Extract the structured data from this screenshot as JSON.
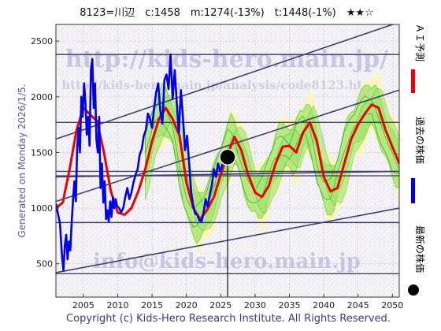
{
  "header": {
    "title": "8123=川辺　c:1458　m:1274(-13%)　t:1448(-1%)　★★☆"
  },
  "side_label": "Generated on Monday 2026/1/5.",
  "footer": {
    "copyright": "Copyright (c) Kids-Hero Research Institute. All Rights Reserved."
  },
  "watermarks": {
    "url": "http://kids-hero.main.jp/",
    "path": "http://kids-hero.main.jp/analysis/code8123.html",
    "email": "info@kids-hero.main.jp"
  },
  "legend": {
    "ai": "ＡＩ予測",
    "past": "過去の株価",
    "latest": "最新の株価"
  },
  "colors": {
    "price": "#0000ee",
    "ai": "#ee0000",
    "band_fill": "#9be36a",
    "band_line": "#3fb52a",
    "channel": "#404070",
    "latest_marker": "#000000"
  },
  "chart_data": {
    "type": "line",
    "xlim": [
      2001,
      2051
    ],
    "ylim": [
      200,
      2650
    ],
    "x_ticks": [
      2005,
      2010,
      2015,
      2020,
      2025,
      2030,
      2035,
      2040,
      2045,
      2050
    ],
    "x_tick_labels": [
      "2005",
      "2010",
      "2015",
      "2020",
      "2025",
      "2030",
      "2035",
      "2040",
      "2045",
      "2050"
    ],
    "y_ticks": [
      500,
      1000,
      1500,
      2000,
      2500
    ],
    "y_tick_labels": [
      "500",
      "1000",
      "1500",
      "2000",
      "2500"
    ],
    "grid": true,
    "latest": {
      "x": 2026.0,
      "y": 1458
    },
    "current_year_line": 2026.0,
    "horizontal_levels": [
      2380,
      1770,
      1330,
      1290,
      870,
      410
    ],
    "trend_lines": [
      {
        "x": [
          2001,
          2051
        ],
        "y": [
          1620,
          2670
        ]
      },
      {
        "x": [
          2001,
          2051
        ],
        "y": [
          1060,
          2060
        ]
      },
      {
        "x": [
          2001,
          2051
        ],
        "y": [
          420,
          1000
        ]
      },
      {
        "x": [
          2001,
          2051
        ],
        "y": [
          1280,
          1330
        ]
      }
    ],
    "series": [
      {
        "name": "過去の株価",
        "x": [
          2001.0,
          2001.3,
          2001.6,
          2001.9,
          2002.1,
          2002.3,
          2002.5,
          2002.7,
          2002.9,
          2003.1,
          2003.3,
          2003.5,
          2003.7,
          2003.9,
          2004.1,
          2004.3,
          2004.5,
          2004.7,
          2004.9,
          2005.1,
          2005.3,
          2005.5,
          2005.7,
          2005.9,
          2006.1,
          2006.3,
          2006.5,
          2006.7,
          2006.9,
          2007.1,
          2007.3,
          2007.5,
          2007.7,
          2007.9,
          2008.1,
          2008.3,
          2008.5,
          2008.7,
          2008.9,
          2009.1,
          2009.3,
          2009.5,
          2009.7,
          2009.9,
          2010.2,
          2010.5,
          2010.8,
          2011.1,
          2011.4,
          2011.7,
          2012.0,
          2012.3,
          2012.6,
          2012.9,
          2013.2,
          2013.5,
          2013.8,
          2014.1,
          2014.4,
          2014.7,
          2015.0,
          2015.3,
          2015.6,
          2015.9,
          2016.2,
          2016.5,
          2016.8,
          2017.1,
          2017.4,
          2017.7,
          2018.0,
          2018.3,
          2018.6,
          2018.9,
          2019.2,
          2019.5,
          2019.8,
          2020.1,
          2020.4,
          2020.7,
          2021.0,
          2021.3,
          2021.6,
          2021.9,
          2022.2,
          2022.5,
          2022.8,
          2023.1,
          2023.4,
          2023.7,
          2024.0,
          2024.3,
          2024.6,
          2024.9,
          2025.2,
          2025.5,
          2025.8,
          2026.0
        ],
        "y": [
          1040,
          950,
          860,
          560,
          440,
          660,
          760,
          540,
          700,
          620,
          880,
          1080,
          1240,
          1060,
          1540,
          1720,
          1500,
          2000,
          1820,
          2120,
          1950,
          1660,
          1820,
          1560,
          2240,
          2340,
          1900,
          2120,
          1620,
          1500,
          1820,
          1180,
          1400,
          1050,
          1240,
          900,
          980,
          880,
          1060,
          920,
          1100,
          1000,
          1080,
          1020,
          1000,
          960,
          1000,
          1100,
          1180,
          1080,
          1140,
          1230,
          1300,
          1350,
          1480,
          1530,
          1650,
          1700,
          1850,
          1800,
          1720,
          1900,
          2040,
          2120,
          1880,
          1760,
          2150,
          2200,
          2070,
          2380,
          1980,
          2240,
          1940,
          1680,
          2060,
          1820,
          1520,
          1650,
          1400,
          1140,
          1020,
          950,
          940,
          890,
          880,
          960,
          1080,
          1010,
          1120,
          1200,
          1350,
          1280,
          1400,
          1330,
          1380,
          1440,
          1470,
          1458
        ]
      },
      {
        "name": "ＡＩ予測",
        "x": [
          2001.0,
          2002.0,
          2003.0,
          2004.0,
          2005.0,
          2006.0,
          2007.0,
          2008.0,
          2009.0,
          2010.0,
          2011.0,
          2012.0,
          2013.0,
          2014.0,
          2015.0,
          2016.0,
          2017.0,
          2018.0,
          2019.0,
          2020.0,
          2021.0,
          2022.0,
          2023.0,
          2024.0,
          2025.0,
          2026.0,
          2027.0,
          2028.0,
          2029.0,
          2030.0,
          2031.0,
          2032.0,
          2033.0,
          2034.0,
          2035.0,
          2036.0,
          2037.0,
          2038.0,
          2039.0,
          2040.0,
          2041.0,
          2042.0,
          2043.0,
          2044.0,
          2045.0,
          2046.0,
          2047.0,
          2048.0,
          2049.0,
          2050.0,
          2051.0
        ],
        "y": [
          1000,
          1050,
          1350,
          1700,
          1900,
          1840,
          1780,
          1500,
          1150,
          960,
          940,
          1000,
          1150,
          1350,
          1600,
          1800,
          1900,
          1800,
          1650,
          1230,
          1000,
          900,
          980,
          1100,
          1300,
          1480,
          1640,
          1520,
          1300,
          1140,
          1100,
          1200,
          1400,
          1550,
          1560,
          1500,
          1680,
          1770,
          1600,
          1280,
          1150,
          1180,
          1400,
          1620,
          1750,
          1850,
          1930,
          1900,
          1700,
          1550,
          1400
        ]
      }
    ]
  }
}
